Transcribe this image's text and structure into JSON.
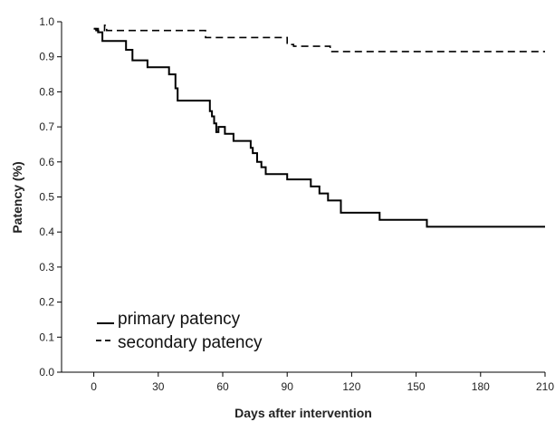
{
  "chart_data": {
    "type": "line",
    "title": "",
    "xlabel": "Days after intervention",
    "ylabel": "Patency (%)",
    "xlim": [
      -15,
      210
    ],
    "ylim": [
      0.0,
      1.0
    ],
    "x_ticks": [
      0,
      30,
      60,
      90,
      120,
      150,
      180,
      210
    ],
    "x_tick_labels": [
      "0",
      "30",
      "60",
      "90",
      "120",
      "150",
      "180",
      "210"
    ],
    "y_ticks": [
      0.0,
      0.1,
      0.2,
      0.3,
      0.4,
      0.5,
      0.6,
      0.7,
      0.8,
      0.9,
      1.0
    ],
    "y_tick_labels": [
      "0.0",
      "0.1",
      "0.2",
      "0.3",
      "0.4",
      "0.5",
      "0.6",
      "0.7",
      "0.8",
      "0.9",
      "1.0"
    ],
    "grid": false,
    "legend_position": "bottom-left",
    "step": true,
    "series": [
      {
        "name": "primary patency",
        "style": "solid",
        "color": "#000000",
        "x": [
          0,
          2,
          4,
          15,
          18,
          25,
          35,
          38,
          39,
          54,
          55,
          56,
          57,
          58,
          61,
          65,
          73,
          74,
          76,
          78,
          80,
          84,
          90,
          101,
          105,
          109,
          115,
          133,
          155,
          210
        ],
        "y": [
          0.98,
          0.97,
          0.945,
          0.92,
          0.89,
          0.87,
          0.85,
          0.81,
          0.775,
          0.745,
          0.73,
          0.71,
          0.685,
          0.7,
          0.68,
          0.66,
          0.64,
          0.625,
          0.6,
          0.585,
          0.565,
          0.565,
          0.55,
          0.53,
          0.51,
          0.49,
          0.455,
          0.435,
          0.415,
          0.415
        ]
      },
      {
        "name": "secondary patency",
        "style": "dashed",
        "color": "#000000",
        "x": [
          0,
          1,
          5,
          6,
          52,
          90,
          93,
          110,
          210
        ],
        "y": [
          0.98,
          0.975,
          0.99,
          0.975,
          0.955,
          0.935,
          0.93,
          0.915,
          0.915
        ]
      }
    ]
  }
}
